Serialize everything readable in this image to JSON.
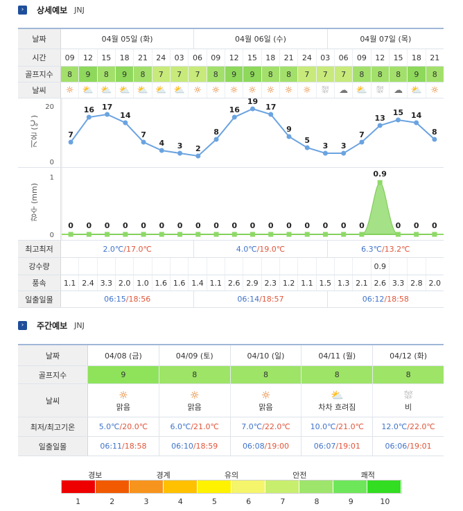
{
  "detail": {
    "icon": "chevron-right-icon",
    "title": "상세예보",
    "location": "JNJ",
    "labels": {
      "date": "날짜",
      "time": "시간",
      "golf": "골프지수",
      "weather": "날씨",
      "temp_axis": "기온 (℃)",
      "rain_axis": "강수 (mm)",
      "minmax": "최고최저",
      "rain": "강수량",
      "wind": "풍속",
      "sun": "일출일몰"
    },
    "days": [
      {
        "date": "04월 05일 (화)",
        "min": "2.0℃",
        "max": "/17.0℃",
        "sunrise": "06:15",
        "sunset": "/18:56"
      },
      {
        "date": "04월 06일 (수)",
        "min": "4.0℃",
        "max": "/19.0℃",
        "sunrise": "06:14",
        "sunset": "/18:57"
      },
      {
        "date": "04월 07일 (목)",
        "min": "6.3℃",
        "max": "/13.2℃",
        "sunrise": "06:12",
        "sunset": "/18:58"
      }
    ],
    "times": [
      "09",
      "12",
      "15",
      "18",
      "21",
      "24",
      "03",
      "06",
      "09",
      "12",
      "15",
      "18",
      "21",
      "24",
      "03",
      "06",
      "09",
      "12",
      "15",
      "18",
      "21"
    ],
    "golf": [
      "8",
      "9",
      "8",
      "9",
      "8",
      "7",
      "7",
      "7",
      "8",
      "9",
      "9",
      "8",
      "8",
      "7",
      "7",
      "7",
      "8",
      "8",
      "8",
      "9",
      "8"
    ],
    "weather_icons": [
      "sun-icon",
      "partly-cloudy-icon",
      "partly-cloudy-icon",
      "partly-cloudy-icon",
      "partly-cloudy-icon",
      "partly-cloudy-icon",
      "partly-cloudy-icon",
      "sun-icon",
      "sun-icon",
      "sun-icon",
      "sun-icon",
      "sun-icon",
      "sun-icon",
      "sun-icon",
      "rain-cloud-icon",
      "cloud-icon",
      "partly-cloudy-icon",
      "rain-cloud-icon",
      "cloud-icon",
      "partly-cloudy-icon",
      "sun-icon"
    ],
    "rain_amounts": [
      "",
      "",
      "",
      "",
      "",
      "",
      "",
      "",
      "",
      "",
      "",
      "",
      "",
      "",
      "",
      "",
      "",
      "0.9",
      "",
      "",
      ""
    ],
    "wind": [
      "1.1",
      "2.4",
      "3.3",
      "2.0",
      "1.0",
      "1.6",
      "1.6",
      "1.4",
      "1.1",
      "2.6",
      "2.9",
      "2.3",
      "1.2",
      "1.1",
      "1.5",
      "1.3",
      "2.1",
      "2.6",
      "3.3",
      "2.8",
      "2.0"
    ]
  },
  "chart_data": [
    {
      "type": "line",
      "title": "",
      "ylabel": "기온 (℃)",
      "ylim": [
        0,
        20
      ],
      "yticks": [
        "20",
        "0"
      ],
      "x": [
        "09",
        "12",
        "15",
        "18",
        "21",
        "24",
        "03",
        "06",
        "09",
        "12",
        "15",
        "18",
        "21",
        "24",
        "03",
        "06",
        "09",
        "12",
        "15",
        "18",
        "21"
      ],
      "values": [
        7,
        16,
        17,
        14,
        7,
        4,
        3,
        2,
        8,
        16,
        19,
        17,
        9,
        5,
        3,
        3,
        7,
        13,
        15,
        14,
        8
      ],
      "color": "#6aa3e0"
    },
    {
      "type": "area",
      "title": "",
      "ylabel": "강수 (mm)",
      "ylim": [
        0,
        1
      ],
      "yticks": [
        "1",
        "0"
      ],
      "x": [
        "09",
        "12",
        "15",
        "18",
        "21",
        "24",
        "03",
        "06",
        "09",
        "12",
        "15",
        "18",
        "21",
        "24",
        "03",
        "06",
        "09",
        "12",
        "15",
        "18",
        "21"
      ],
      "values": [
        0,
        0,
        0,
        0,
        0,
        0,
        0,
        0,
        0,
        0,
        0,
        0,
        0,
        0,
        0,
        0,
        0,
        0.9,
        0,
        0,
        0
      ],
      "labels": [
        "0",
        "0",
        "0",
        "0",
        "0",
        "0",
        "0",
        "0",
        "0",
        "0",
        "0",
        "0",
        "0",
        "0",
        "0",
        "0",
        "0",
        "0.9",
        "0",
        "0",
        "0"
      ],
      "color": "#8fd968"
    }
  ],
  "weekly": {
    "icon": "chevron-right-icon",
    "title": "주간예보",
    "location": "JNJ",
    "labels": {
      "date": "날짜",
      "golf": "골프지수",
      "weather": "날씨",
      "minmax": "최저/최고기온",
      "sun": "일출일몰"
    },
    "days": [
      {
        "date": "04/08 (금)",
        "golf": "9",
        "icon": "sun-icon",
        "desc": "맑음",
        "min": "5.0℃",
        "max": "/20.0℃",
        "sunrise": "06:11",
        "sunset": "/18:58"
      },
      {
        "date": "04/09 (토)",
        "golf": "8",
        "icon": "sun-icon",
        "desc": "맑음",
        "min": "6.0℃",
        "max": "/21.0℃",
        "sunrise": "06:10",
        "sunset": "/18:59"
      },
      {
        "date": "04/10 (일)",
        "golf": "8",
        "icon": "sun-icon",
        "desc": "맑음",
        "min": "7.0℃",
        "max": "/22.0℃",
        "sunrise": "06:08",
        "sunset": "/19:00"
      },
      {
        "date": "04/11 (월)",
        "golf": "8",
        "icon": "clearing-icon",
        "desc": "차차 흐려짐",
        "min": "10.0℃",
        "max": "/21.0℃",
        "sunrise": "06:07",
        "sunset": "/19:01"
      },
      {
        "date": "04/12 (화)",
        "golf": "8",
        "icon": "rain-cloud-icon",
        "desc": "비",
        "min": "12.0℃",
        "max": "/22.0℃",
        "sunrise": "06:06",
        "sunset": "/19:01"
      }
    ]
  },
  "legend": {
    "names": [
      "경보",
      "경계",
      "유의",
      "안전",
      "쾌적"
    ],
    "numbers": [
      "1",
      "2",
      "3",
      "4",
      "5",
      "6",
      "7",
      "8",
      "9",
      "10"
    ],
    "colors": [
      "#ee0000",
      "#f15a00",
      "#f7941d",
      "#ffc000",
      "#fff200",
      "#f5f56b",
      "#c8ee6e",
      "#9ee56b",
      "#6ee65a",
      "#33dd22"
    ]
  }
}
